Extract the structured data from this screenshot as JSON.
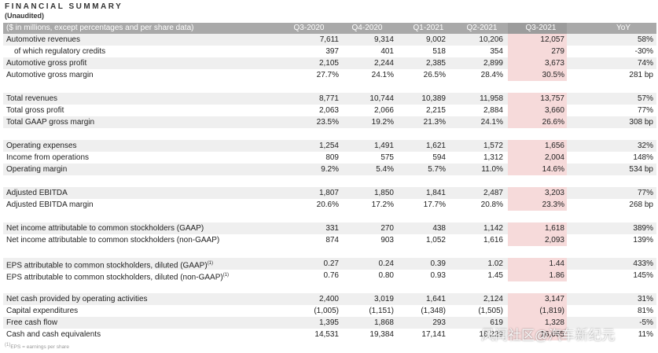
{
  "header": {
    "title": "FINANCIAL SUMMARY",
    "subtitle": "(Unaudited)"
  },
  "table": {
    "columns": [
      "($ in millions, except percentages and per share data)",
      "Q3-2020",
      "Q4-2020",
      "Q1-2021",
      "Q2-2021",
      "Q3-2021",
      "YoY"
    ],
    "sections": [
      [
        {
          "label": "Automotive revenues",
          "cells": [
            "7,611",
            "9,314",
            "9,002",
            "10,206",
            "12,057",
            "58%"
          ]
        },
        {
          "label": "of which regulatory credits",
          "cells": [
            "397",
            "401",
            "518",
            "354",
            "279",
            "-30%"
          ]
        },
        {
          "label": "Automotive gross profit",
          "cells": [
            "2,105",
            "2,244",
            "2,385",
            "2,899",
            "3,673",
            "74%"
          ]
        },
        {
          "label": "Automotive gross margin",
          "cells": [
            "27.7%",
            "24.1%",
            "26.5%",
            "28.4%",
            "30.5%",
            "281 bp"
          ]
        }
      ],
      [
        {
          "label": "Total revenues",
          "cells": [
            "8,771",
            "10,744",
            "10,389",
            "11,958",
            "13,757",
            "57%"
          ]
        },
        {
          "label": "Total gross profit",
          "cells": [
            "2,063",
            "2,066",
            "2,215",
            "2,884",
            "3,660",
            "77%"
          ]
        },
        {
          "label": "Total GAAP gross margin",
          "cells": [
            "23.5%",
            "19.2%",
            "21.3%",
            "24.1%",
            "26.6%",
            "308 bp"
          ]
        }
      ],
      [
        {
          "label": "Operating expenses",
          "cells": [
            "1,254",
            "1,491",
            "1,621",
            "1,572",
            "1,656",
            "32%"
          ]
        },
        {
          "label": "Income from operations",
          "cells": [
            "809",
            "575",
            "594",
            "1,312",
            "2,004",
            "148%"
          ]
        },
        {
          "label": "Operating margin",
          "cells": [
            "9.2%",
            "5.4%",
            "5.7%",
            "11.0%",
            "14.6%",
            "534 bp"
          ]
        }
      ],
      [
        {
          "label": "Adjusted EBITDA",
          "cells": [
            "1,807",
            "1,850",
            "1,841",
            "2,487",
            "3,203",
            "77%"
          ]
        },
        {
          "label": "Adjusted EBITDA margin",
          "cells": [
            "20.6%",
            "17.2%",
            "17.7%",
            "20.8%",
            "23.3%",
            "268 bp"
          ]
        }
      ],
      [
        {
          "label": "Net income attributable to common stockholders (GAAP)",
          "cells": [
            "331",
            "270",
            "438",
            "1,142",
            "1,618",
            "389%"
          ]
        },
        {
          "label": "Net income attributable to common stockholders (non-GAAP)",
          "cells": [
            "874",
            "903",
            "1,052",
            "1,616",
            "2,093",
            "139%"
          ]
        }
      ],
      [
        {
          "label": "EPS attributable to common stockholders, diluted (GAAP)",
          "sup": "(1)",
          "cells": [
            "0.27",
            "0.24",
            "0.39",
            "1.02",
            "1.44",
            "433%"
          ]
        },
        {
          "label": "EPS attributable to common stockholders, diluted (non-GAAP)",
          "sup": "(1)",
          "cells": [
            "0.76",
            "0.80",
            "0.93",
            "1.45",
            "1.86",
            "145%"
          ]
        }
      ],
      [
        {
          "label": "Net cash provided by operating activities",
          "cells": [
            "2,400",
            "3,019",
            "1,641",
            "2,124",
            "3,147",
            "31%"
          ]
        },
        {
          "label": "Capital expenditures",
          "cells": [
            "(1,005)",
            "(1,151)",
            "(1,348)",
            "(1,505)",
            "(1,819)",
            "81%"
          ]
        },
        {
          "label": "Free cash flow",
          "cells": [
            "1,395",
            "1,868",
            "293",
            "619",
            "1,328",
            "-5%"
          ]
        },
        {
          "label": "Cash and cash equivalents",
          "cells": [
            "14,531",
            "19,384",
            "17,141",
            "16,229",
            "16,065",
            "11%"
          ]
        }
      ]
    ]
  },
  "footnote": {
    "sup": "(1)",
    "text": "EPS = earnings per share"
  },
  "watermark": "风闻社区@汽车新纪元"
}
